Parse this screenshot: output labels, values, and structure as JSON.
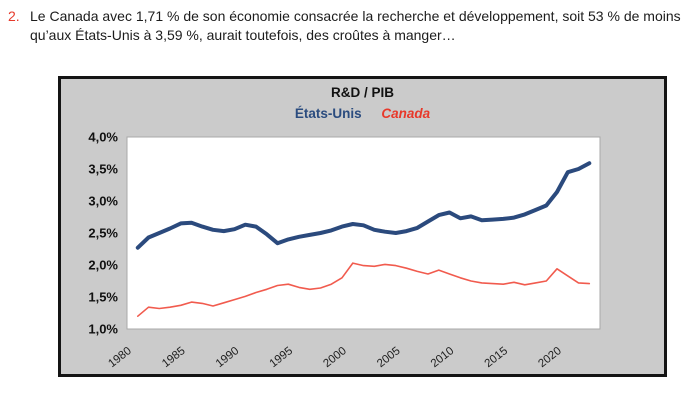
{
  "paragraph": {
    "number": "2.",
    "text": "Le Canada avec 1,71 % de son économie consacrée la recherche et développement, soit 53 % de moins qu’aux États-Unis à 3,59 %, aurait toutefois, des croûtes à manger…"
  },
  "chart": {
    "title": "R&D / PIB",
    "legend": [
      {
        "label": "États-Unis",
        "color": "#2b4c7f"
      },
      {
        "label": "Canada",
        "color": "#e8392b"
      }
    ]
  },
  "chart_data": {
    "type": "line",
    "title": "R&D / PIB",
    "xlabel": "",
    "ylabel": "",
    "grid": false,
    "legend_position": "top",
    "y_range": [
      1.0,
      4.0
    ],
    "y_ticks": [
      "4,0%",
      "3,5%",
      "3,0%",
      "2,5%",
      "2,0%",
      "1,5%",
      "1,0%"
    ],
    "x_axis_range": [
      1980,
      2024
    ],
    "x_ticks": [
      "1980",
      "1985",
      "1990",
      "1995",
      "2000",
      "2005",
      "2010",
      "2015",
      "2020"
    ],
    "x": [
      1981,
      1982,
      1983,
      1984,
      1985,
      1986,
      1987,
      1988,
      1989,
      1990,
      1991,
      1992,
      1993,
      1994,
      1995,
      1996,
      1997,
      1998,
      1999,
      2000,
      2001,
      2002,
      2003,
      2004,
      2005,
      2006,
      2007,
      2008,
      2009,
      2010,
      2011,
      2012,
      2013,
      2014,
      2015,
      2016,
      2017,
      2018,
      2019,
      2020,
      2021,
      2022,
      2023
    ],
    "series": [
      {
        "name": "États-Unis",
        "color": "#2b4a7d",
        "values": [
          2.27,
          2.43,
          2.5,
          2.57,
          2.65,
          2.66,
          2.6,
          2.55,
          2.53,
          2.56,
          2.63,
          2.6,
          2.48,
          2.34,
          2.4,
          2.44,
          2.47,
          2.5,
          2.54,
          2.6,
          2.64,
          2.62,
          2.55,
          2.52,
          2.5,
          2.53,
          2.58,
          2.68,
          2.78,
          2.82,
          2.73,
          2.76,
          2.7,
          2.71,
          2.72,
          2.74,
          2.79,
          2.86,
          2.93,
          3.14,
          3.45,
          3.5,
          3.59
        ]
      },
      {
        "name": "Canada",
        "color": "#f15b4e",
        "values": [
          1.2,
          1.34,
          1.32,
          1.34,
          1.37,
          1.42,
          1.4,
          1.36,
          1.41,
          1.46,
          1.51,
          1.57,
          1.62,
          1.68,
          1.7,
          1.65,
          1.62,
          1.64,
          1.7,
          1.8,
          2.03,
          1.99,
          1.98,
          2.01,
          1.99,
          1.95,
          1.9,
          1.86,
          1.92,
          1.86,
          1.8,
          1.75,
          1.72,
          1.71,
          1.7,
          1.73,
          1.69,
          1.72,
          1.75,
          1.94,
          1.83,
          1.72,
          1.71
        ]
      }
    ]
  }
}
